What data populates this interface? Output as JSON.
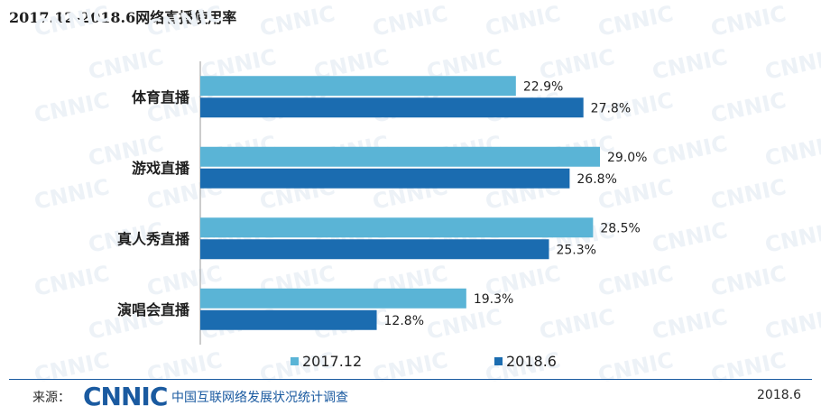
{
  "chart_data": {
    "type": "bar",
    "orientation": "horizontal",
    "title": "2017.12-2018.6网络直播使用率",
    "categories": [
      "体育直播",
      "游戏直播",
      "真人秀直播",
      "演唱会直播"
    ],
    "series": [
      {
        "name": "2017.12",
        "values": [
          22.9,
          29.0,
          28.5,
          19.3
        ],
        "labels": [
          "22.9%",
          "29.0%",
          "28.5%",
          "19.3%"
        ],
        "color": "#5ab4d6"
      },
      {
        "name": "2018.6",
        "values": [
          27.8,
          26.8,
          25.3,
          12.8
        ],
        "labels": [
          "27.8%",
          "26.8%",
          "25.3%",
          "12.8%"
        ],
        "color": "#1b6cb0"
      }
    ],
    "xlim": [
      0,
      35
    ],
    "unit": "%",
    "grid": false,
    "legend_position": "bottom"
  },
  "footer": {
    "source_label": "来源：",
    "logo_text": "CNNIC",
    "org": "中国互联网络发展状况统计调查",
    "date": "2018.6"
  },
  "watermark_text": "CNNIC"
}
